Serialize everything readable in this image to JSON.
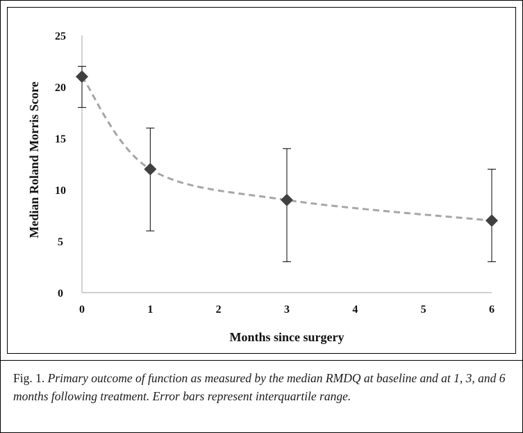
{
  "caption": {
    "label": "Fig. 1.",
    "text": "Primary outcome of function as measured by the median RMDQ at baseline and at 1, 3, and 6 months following treatment. Error bars represent interquartile range."
  },
  "chart_data": {
    "type": "line",
    "title": "",
    "xlabel": "Months since surgery",
    "ylabel": "Median Roland Morris Score",
    "xlim": [
      0,
      6
    ],
    "ylim": [
      0,
      25
    ],
    "x_ticks": [
      0,
      1,
      2,
      3,
      4,
      5,
      6
    ],
    "y_ticks": [
      0,
      5,
      10,
      15,
      20,
      25
    ],
    "grid": false,
    "legend": "none",
    "series": [
      {
        "x": [
          0,
          1,
          3,
          6
        ],
        "y": [
          21,
          12,
          9,
          7
        ],
        "error_low": [
          18,
          6,
          3,
          3
        ],
        "error_high": [
          22,
          16,
          14,
          12
        ],
        "marker": "diamond",
        "marker_color": "#404040",
        "trend_color": "#a6a6a6",
        "trend_style": "dashed"
      }
    ]
  }
}
